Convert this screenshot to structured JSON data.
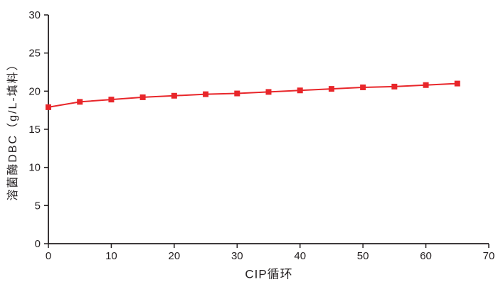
{
  "chart_data": {
    "type": "line",
    "title": "",
    "xlabel": "CIP循环",
    "ylabel": "溶菌酶DBC（g/L-填料）",
    "x": [
      0,
      5,
      10,
      15,
      20,
      25,
      30,
      35,
      40,
      45,
      50,
      55,
      60,
      65
    ],
    "series": [
      {
        "name": "溶菌酶DBC",
        "values": [
          17.9,
          18.6,
          18.9,
          19.2,
          19.4,
          19.6,
          19.7,
          19.9,
          20.1,
          20.3,
          20.5,
          20.6,
          20.8,
          21.0
        ]
      }
    ],
    "xlim": [
      0,
      70
    ],
    "ylim": [
      0,
      30
    ],
    "x_ticks": [
      0,
      10,
      20,
      30,
      40,
      50,
      60,
      70
    ],
    "y_ticks": [
      0,
      5,
      10,
      15,
      20,
      25,
      30
    ],
    "grid": false,
    "legend": false,
    "marker": "square",
    "line_color": "#e8262a",
    "axis_color": "#231f20"
  }
}
